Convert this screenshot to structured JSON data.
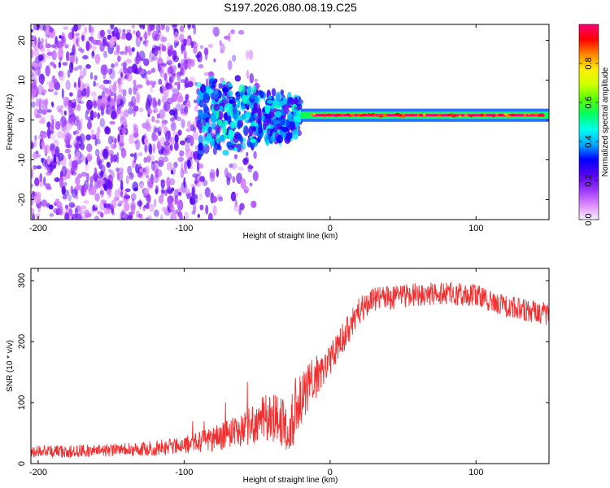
{
  "title": "S197.2026.080.08.19.C25",
  "colors": {
    "snr_line": "#f03030",
    "axis": "#000000",
    "colorbar_stops": [
      "#f7f0ff",
      "#dd88ff",
      "#9933ff",
      "#5500ee",
      "#0000ff",
      "#00aaff",
      "#00ffee",
      "#00ff66",
      "#55ff00",
      "#ccff00",
      "#ffee00",
      "#ff8800",
      "#ff0000",
      "#ff0077"
    ]
  },
  "chart_data": [
    {
      "type": "heatmap",
      "title": "",
      "xlabel": "Height of straight line (km)",
      "ylabel": "Frequency (Hz)",
      "xlim": [
        -205,
        150
      ],
      "ylim": [
        -25,
        24
      ],
      "xticks": [
        -200,
        -100,
        0,
        100
      ],
      "xtick_labels": [
        "-200",
        "-100",
        "0",
        "100"
      ],
      "yticks": [
        20,
        10,
        0,
        -10,
        -20
      ],
      "ytick_labels": [
        "20",
        "10",
        "0",
        "-10",
        "-20"
      ],
      "colorbar": {
        "label": "Normalized spectral amplitude",
        "range": [
          0,
          1
        ],
        "ticks": [
          0.0,
          0.2,
          0.4,
          0.6,
          0.8
        ],
        "tick_labels": [
          "0.0",
          "0.2",
          "0.4",
          "0.6",
          "0.8"
        ]
      },
      "regions": [
        {
          "name": "diffuse-noise",
          "x_range": [
            -205,
            -90
          ],
          "freq_range": [
            -25,
            24
          ],
          "amplitude": [
            0.05,
            0.25
          ]
        },
        {
          "name": "transition-blobs",
          "x_range": [
            -90,
            -20
          ],
          "freq_range": [
            -10,
            10
          ],
          "amplitude": [
            0.2,
            0.5
          ]
        },
        {
          "name": "carrier-line",
          "x_range": [
            -20,
            150
          ],
          "freq_range": [
            0,
            3
          ],
          "center_freq": 1.2,
          "amplitude": [
            0.8,
            1.0
          ]
        }
      ]
    },
    {
      "type": "line",
      "title": "",
      "xlabel": "Height of straight line (km)",
      "ylabel": "SNR (10 * v/v)",
      "xlim": [
        -205,
        150
      ],
      "ylim": [
        0,
        320
      ],
      "xticks": [
        -200,
        -100,
        0,
        100
      ],
      "xtick_labels": [
        "-200",
        "-100",
        "0",
        "100"
      ],
      "yticks": [
        0,
        100,
        200,
        300
      ],
      "ytick_labels": [
        "0",
        "100",
        "200",
        "300"
      ],
      "series": [
        {
          "name": "SNR",
          "x": [
            -205,
            -180,
            -150,
            -120,
            -100,
            -80,
            -60,
            -45,
            -35,
            -28,
            -24,
            -20,
            -15,
            -10,
            -5,
            0,
            10,
            20,
            30,
            50,
            80,
            100,
            120,
            150
          ],
          "values": [
            20,
            20,
            22,
            25,
            30,
            40,
            55,
            75,
            70,
            50,
            95,
            110,
            125,
            140,
            155,
            170,
            210,
            250,
            268,
            275,
            280,
            275,
            258,
            245
          ],
          "noise_amplitude": [
            10,
            10,
            10,
            12,
            14,
            20,
            28,
            40,
            45,
            45,
            55,
            45,
            40,
            35,
            30,
            28,
            25,
            22,
            20,
            20,
            18,
            18,
            18,
            18
          ]
        }
      ]
    }
  ]
}
